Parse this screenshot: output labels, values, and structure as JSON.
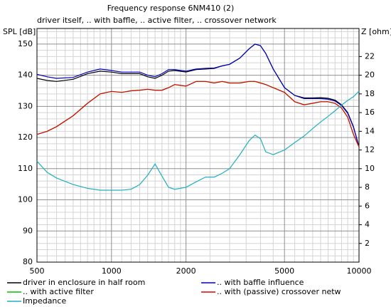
{
  "chart_data": {
    "type": "line",
    "title": "Frequency response 6NM410 (2)",
    "subtitle": "driver itself, .. with baffle, .. active filter, .. crossover network",
    "ylabel": "SPL [dB]",
    "y2label": "Z [ohm]",
    "xscale": "log",
    "grid": true,
    "legend": "bottom",
    "xlim": [
      500,
      10000
    ],
    "xticks": [
      500,
      1000,
      2000,
      5000,
      10000
    ],
    "xgrid": [
      550,
      600,
      650,
      700,
      750,
      800,
      850,
      900,
      950,
      1100,
      1200,
      1300,
      1400,
      1500,
      1600,
      1700,
      1800,
      1900,
      2500,
      3000,
      3500,
      4000,
      4500,
      5500,
      6000,
      6500,
      7000,
      7500,
      8000,
      8500,
      9000,
      9500
    ],
    "ylim": [
      80,
      155
    ],
    "yticks": [
      80,
      90,
      100,
      110,
      120,
      130,
      140,
      150
    ],
    "ygrid": [
      82,
      84,
      86,
      88,
      92,
      94,
      96,
      98,
      102,
      104,
      106,
      108,
      112,
      114,
      116,
      118,
      122,
      124,
      126,
      128,
      132,
      134,
      136,
      138,
      142,
      144,
      146,
      148,
      152,
      154
    ],
    "y2lim": [
      0,
      25
    ],
    "y2ticks": [
      2,
      4,
      6,
      8,
      10,
      12,
      14,
      16,
      18,
      20,
      22
    ],
    "x": [
      500,
      550,
      600,
      700,
      800,
      900,
      1000,
      1100,
      1200,
      1300,
      1400,
      1500,
      1600,
      1700,
      1800,
      2000,
      2200,
      2400,
      2600,
      2800,
      3000,
      3300,
      3600,
      3800,
      4000,
      4200,
      4500,
      5000,
      5500,
      6000,
      6500,
      7000,
      7500,
      8000,
      8500,
      9000,
      9500,
      10000
    ],
    "series": [
      {
        "name": "driver in enclosure in half room",
        "color": "#000000",
        "values": [
          139,
          138.3,
          138,
          138.7,
          140.5,
          141.3,
          141,
          140.5,
          140.5,
          140.5,
          139.5,
          139,
          140,
          141.3,
          141.5,
          141,
          141.8,
          142,
          142.2,
          143,
          143.5,
          145.5,
          148.5,
          150,
          149.5,
          147,
          142,
          136,
          133.5,
          132.7,
          132.7,
          132.8,
          132.6,
          132,
          130.5,
          128,
          123.5,
          117
        ]
      },
      {
        "name": ".. with baffle influence",
        "color": "#0000c0",
        "values": [
          140.3,
          139.5,
          139,
          139.3,
          141,
          142,
          141.5,
          141,
          141,
          141,
          140,
          139.5,
          140.5,
          141.8,
          141.8,
          141.3,
          142,
          142.2,
          142.3,
          143,
          143.5,
          145.5,
          148.5,
          150,
          149.5,
          147,
          142,
          136,
          133.5,
          132.5,
          132.5,
          132.5,
          132.3,
          131.7,
          130.3,
          127.8,
          123.3,
          117
        ]
      },
      {
        "name": ".. with active filter",
        "color": "#00c000",
        "values": [
          121,
          122,
          123.5,
          127,
          131,
          134,
          134.8,
          134.5,
          135,
          135.2,
          135.5,
          135.2,
          135.2,
          136,
          137,
          136.5,
          138,
          138,
          137.5,
          138,
          137.5,
          137.5,
          138,
          138,
          137.5,
          137,
          136,
          134.5,
          131.5,
          130.5,
          131,
          131.5,
          131.5,
          131,
          129.5,
          126.5,
          121,
          117
        ]
      },
      {
        "name": ".. with (passive) crossover netw",
        "color": "#e00000",
        "values": [
          121,
          122,
          123.5,
          127,
          131,
          134,
          134.8,
          134.5,
          135,
          135.2,
          135.5,
          135.2,
          135.2,
          136,
          137,
          136.5,
          138,
          138,
          137.5,
          138,
          137.5,
          137.5,
          138,
          138,
          137.5,
          137,
          136,
          134.5,
          131.5,
          130.5,
          131,
          131.5,
          131.5,
          131,
          129.5,
          126.5,
          121,
          117
        ]
      },
      {
        "name": "Impedance",
        "color": "#20b0c0",
        "axis": "y2",
        "values": [
          10.8,
          9.6,
          9,
          8.3,
          7.9,
          7.7,
          7.7,
          7.7,
          7.8,
          8.3,
          9.3,
          10.5,
          9.2,
          8,
          7.8,
          8,
          8.6,
          9.1,
          9.1,
          9.5,
          10,
          11.5,
          13,
          13.6,
          13.2,
          11.8,
          11.5,
          12,
          12.8,
          13.5,
          14.3,
          15,
          15.6,
          16.2,
          16.8,
          17.3,
          17.7,
          18.3
        ]
      }
    ]
  }
}
